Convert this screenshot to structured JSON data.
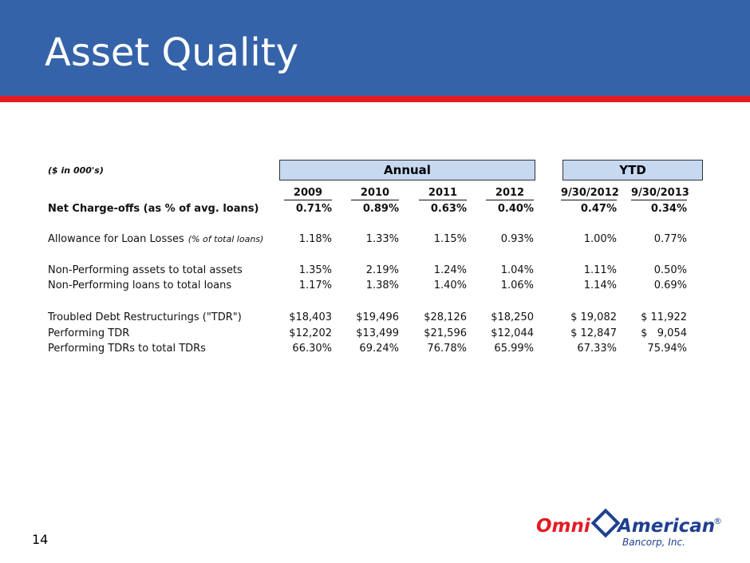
{
  "header": {
    "title": "Asset Quality"
  },
  "table": {
    "note": "($ in 000's)",
    "groups": [
      "Annual",
      "YTD"
    ],
    "columns": [
      "2009",
      "2010",
      "2011",
      "2012",
      "9/30/2012",
      "9/30/2013"
    ],
    "rows": [
      {
        "label": "Net Charge-offs (as % of avg. loans)",
        "values": [
          "0.71%",
          "0.89%",
          "0.63%",
          "0.40%",
          "0.47%",
          "0.34%"
        ]
      },
      {
        "label": "Allowance for Loan Losses",
        "note": "(% of total loans)",
        "values": [
          "1.18%",
          "1.33%",
          "1.15%",
          "0.93%",
          "1.00%",
          "0.77%"
        ]
      },
      {
        "label": "Non-Performing assets to total assets",
        "values": [
          "1.35%",
          "2.19%",
          "1.24%",
          "1.04%",
          "1.11%",
          "0.50%"
        ]
      },
      {
        "label": "Non-Performing loans to total loans",
        "values": [
          "1.17%",
          "1.38%",
          "1.40%",
          "1.06%",
          "1.14%",
          "0.69%"
        ]
      },
      {
        "label": "Troubled Debt Restructurings (\"TDR\")",
        "values": [
          "$18,403",
          "$19,496",
          "$28,126",
          "$18,250",
          "$ 19,082",
          "$ 11,922"
        ]
      },
      {
        "label": "Performing TDR",
        "values": [
          "$12,202",
          "$13,499",
          "$21,596",
          "$12,044",
          "$ 12,847",
          "$   9,054"
        ]
      },
      {
        "label": "Performing TDRs to total TDRs",
        "values": [
          "66.30%",
          "69.24%",
          "76.78%",
          "65.99%",
          "67.33%",
          "75.94%"
        ]
      }
    ]
  },
  "page_number": "14",
  "logo": {
    "part1": "Omni",
    "part2": "American",
    "registered": "®",
    "sub": "Bancorp, Inc."
  }
}
